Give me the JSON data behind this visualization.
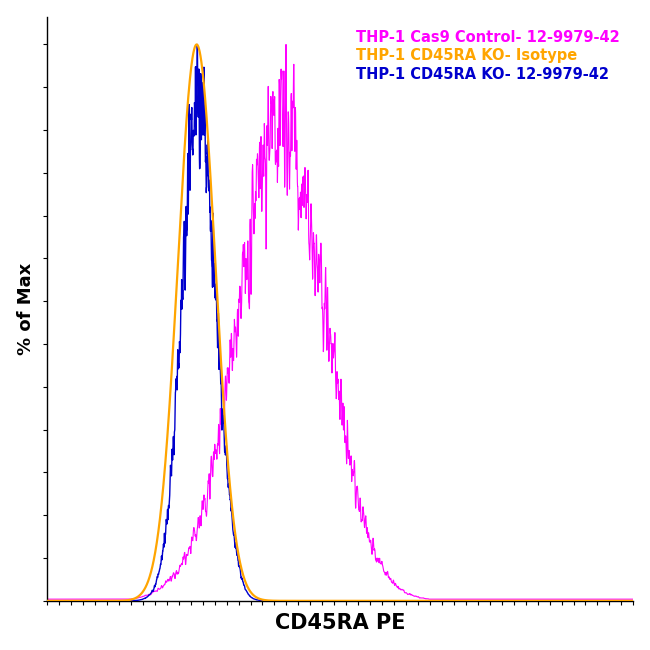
{
  "title": "",
  "xlabel": "CD45RA PE",
  "ylabel": "% of Max",
  "legend_entries": [
    "THP-1 Cas9 Control- 12-9979-42",
    "THP-1 CD45RA KO- Isotype",
    "THP-1 CD45RA KO- 12-9979-42"
  ],
  "legend_colors": [
    "#FF00FF",
    "#FFA500",
    "#0000CD"
  ],
  "background_color": "#FFFFFF",
  "line_colors": {
    "magenta": "#FF00FF",
    "orange": "#FFA500",
    "blue": "#0000CD"
  },
  "xlim": [
    0.0,
    1.0
  ],
  "ylim": [
    0.0,
    1.05
  ],
  "xlabel_fontsize": 15,
  "ylabel_fontsize": 13,
  "legend_fontsize": 10.5,
  "n_xticks": 50
}
